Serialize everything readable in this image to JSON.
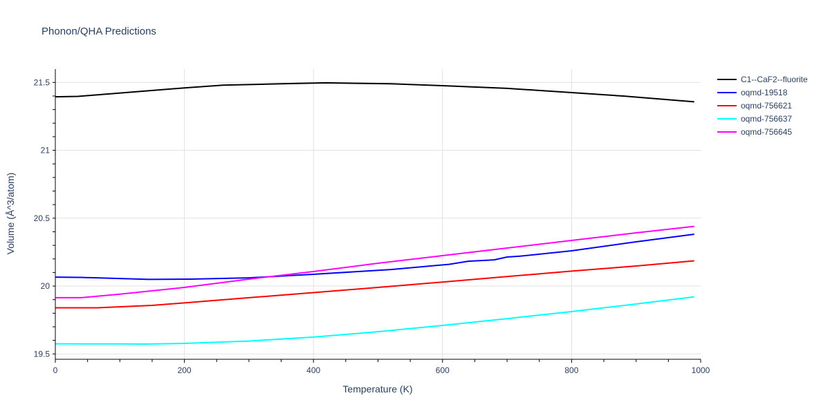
{
  "chart_data": {
    "type": "line",
    "title": "Phonon/QHA Predictions",
    "xlabel": "Temperature (K)",
    "ylabel": "Volume (Å^3/atom)",
    "xlim": [
      0,
      1000
    ],
    "ylim": [
      19.46,
      21.6
    ],
    "xticks": [
      0,
      200,
      400,
      600,
      800,
      1000
    ],
    "xtick_labels": [
      "0",
      "200",
      "400",
      "600",
      "800",
      "1000"
    ],
    "yticks": [
      19.5,
      20,
      20.5,
      21,
      21.5
    ],
    "ytick_labels": [
      "19.5",
      "20",
      "20.5",
      "21",
      "21.5"
    ],
    "grid": true,
    "legend_position": "right",
    "series": [
      {
        "name": "C1--CaF2--fluorite",
        "color": "#000000",
        "x": [
          0,
          35,
          200,
          260,
          350,
          420,
          520,
          600,
          700,
          800,
          880,
          990
        ],
        "y": [
          21.394,
          21.397,
          21.46,
          21.48,
          21.49,
          21.497,
          21.49,
          21.476,
          21.456,
          21.425,
          21.4,
          21.357
        ]
      },
      {
        "name": "oqmd-19518",
        "color": "#0000ff",
        "x": [
          0,
          40,
          145,
          210,
          300,
          400,
          520,
          610,
          640,
          680,
          700,
          720,
          800,
          900,
          990
        ],
        "y": [
          20.066,
          20.064,
          20.049,
          20.051,
          20.061,
          20.087,
          20.122,
          20.16,
          20.183,
          20.193,
          20.214,
          20.22,
          20.26,
          20.326,
          20.382
        ]
      },
      {
        "name": "oqmd-756621",
        "color": "#ff0000",
        "x": [
          0,
          65,
          150,
          200,
          300,
          400,
          500,
          600,
          700,
          800,
          900,
          990
        ],
        "y": [
          19.84,
          19.84,
          19.858,
          19.876,
          19.914,
          19.952,
          19.99,
          20.03,
          20.07,
          20.11,
          20.148,
          20.186
        ]
      },
      {
        "name": "oqmd-756637",
        "color": "#00ffff",
        "x": [
          0,
          100,
          140,
          200,
          300,
          400,
          500,
          600,
          700,
          800,
          900,
          990
        ],
        "y": [
          19.575,
          19.574,
          19.573,
          19.578,
          19.595,
          19.624,
          19.664,
          19.71,
          19.76,
          19.812,
          19.868,
          19.921
        ]
      },
      {
        "name": "oqmd-756645",
        "color": "#ff00ff",
        "x": [
          0,
          40,
          100,
          200,
          300,
          400,
          500,
          600,
          700,
          800,
          900,
          990
        ],
        "y": [
          19.914,
          19.914,
          19.94,
          19.99,
          20.051,
          20.107,
          20.168,
          20.224,
          20.28,
          20.336,
          20.392,
          20.44
        ]
      }
    ]
  }
}
